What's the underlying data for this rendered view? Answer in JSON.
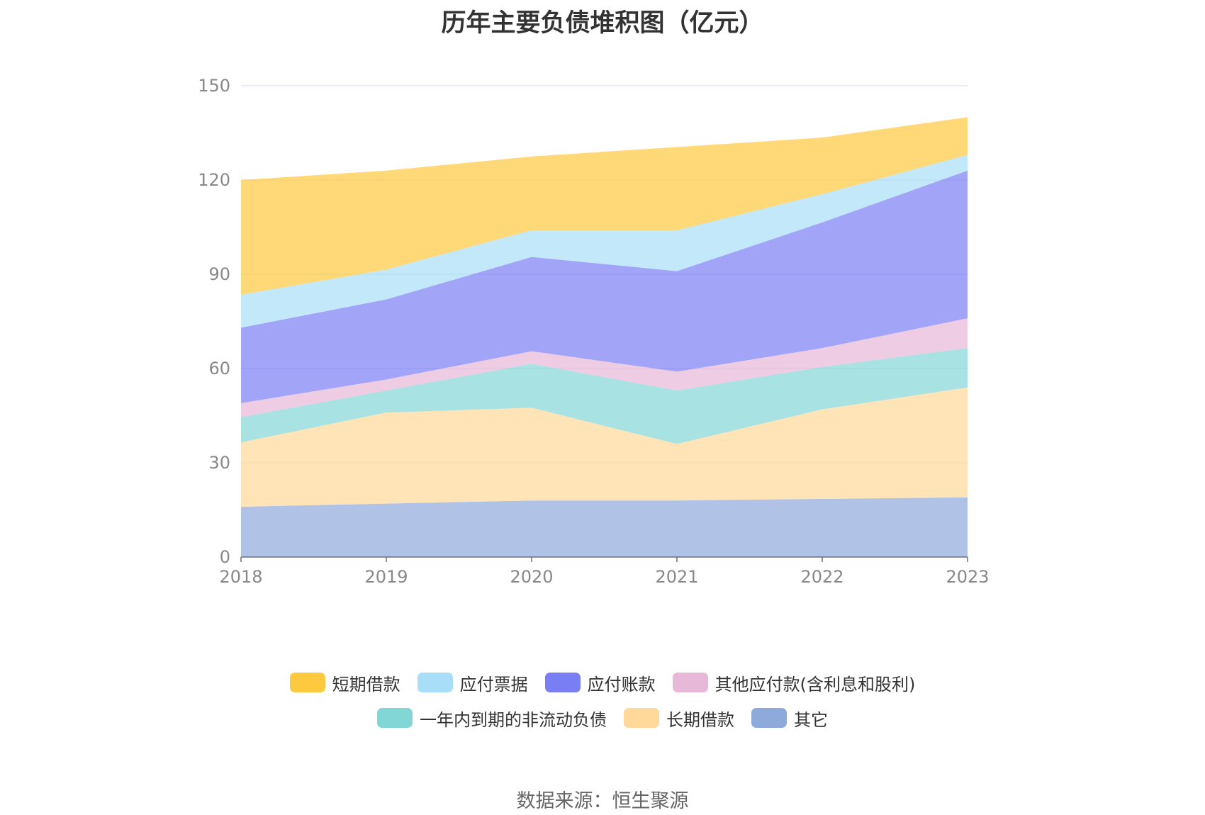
{
  "title": "历年主要负债堆积图（亿元）",
  "source": "数据来源：恒生聚源",
  "chart_data": {
    "type": "area",
    "stacked": true,
    "x": [
      "2018",
      "2019",
      "2020",
      "2021",
      "2022",
      "2023"
    ],
    "ylim": [
      0,
      150
    ],
    "yticks": [
      0,
      30,
      60,
      90,
      120,
      150
    ],
    "grid": true,
    "legend_position": "bottom",
    "series": [
      {
        "name": "其它",
        "color": "#8eaadb",
        "values": [
          16,
          17,
          18,
          18,
          18.5,
          19
        ]
      },
      {
        "name": "长期借款",
        "color": "#ffd99a",
        "values": [
          20.5,
          29,
          29.5,
          18,
          28.5,
          35
        ]
      },
      {
        "name": "一年内到期的非流动负债",
        "color": "#83d6d6",
        "values": [
          8,
          7,
          14,
          17,
          13.5,
          12.5
        ]
      },
      {
        "name": "其他应付款(含利息和股利)",
        "color": "#e7b8d8",
        "values": [
          4.5,
          3.5,
          4,
          6,
          6,
          9.5
        ]
      },
      {
        "name": "应付账款",
        "color": "#7a7ef5",
        "values": [
          24,
          25.5,
          30,
          32,
          40,
          47
        ]
      },
      {
        "name": "应付票据",
        "color": "#a8def7",
        "values": [
          10.5,
          9.5,
          8.5,
          13,
          9,
          5
        ]
      },
      {
        "name": "短期借款",
        "color": "#ffc93f",
        "values": [
          36.5,
          31.5,
          23.5,
          26.5,
          18,
          12
        ]
      }
    ]
  }
}
